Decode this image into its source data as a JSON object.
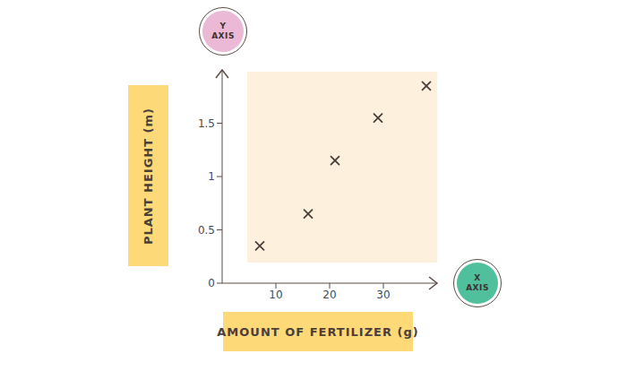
{
  "chart_data": {
    "type": "scatter",
    "x": [
      7,
      16,
      21,
      29,
      38
    ],
    "values": [
      0.35,
      0.65,
      1.15,
      1.55,
      1.85
    ],
    "x_label": "AMOUNT OF FERTILIZER (g)",
    "y_label": "PLANT HEIGHT (m)",
    "annotations": [
      "Y AXIS",
      "X AXIS"
    ],
    "xlim": [
      0,
      40
    ],
    "ylim": [
      0,
      2
    ],
    "xticks": [
      10,
      20,
      30
    ],
    "yticks": [
      0,
      0.5,
      1,
      1.5
    ],
    "marker": "x",
    "color": "#4a3f3a",
    "grid": false
  }
}
